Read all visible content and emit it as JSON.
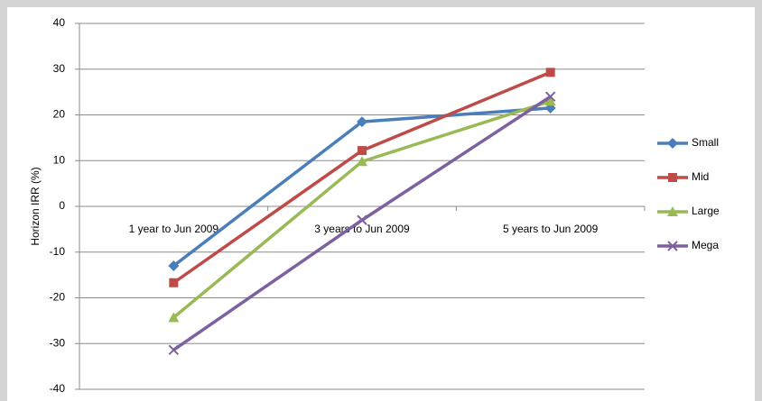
{
  "chart_data": {
    "type": "line",
    "y_label": "Horizon IRR (%)",
    "categories": [
      "1 year to Jun 2009",
      "3 years to Jun 2009",
      "5 years to Jun 2009"
    ],
    "series": [
      {
        "name": "Small",
        "color": "#4a7ebb",
        "marker": "diamond",
        "values": [
          -13,
          18.5,
          21.5
        ]
      },
      {
        "name": "Mid",
        "color": "#be4b48",
        "marker": "square",
        "values": [
          -16.7,
          12.2,
          29.3
        ]
      },
      {
        "name": "Large",
        "color": "#98b954",
        "marker": "triangle",
        "values": [
          -24.3,
          9.8,
          23
        ]
      },
      {
        "name": "Mega",
        "color": "#7d60a0",
        "marker": "x",
        "values": [
          -31.4,
          -3,
          24
        ]
      }
    ],
    "ylim": [
      -40,
      40
    ],
    "yticks": [
      -40,
      -30,
      -20,
      -10,
      0,
      10,
      20,
      30,
      40
    ],
    "grid": true,
    "legend": "right"
  }
}
